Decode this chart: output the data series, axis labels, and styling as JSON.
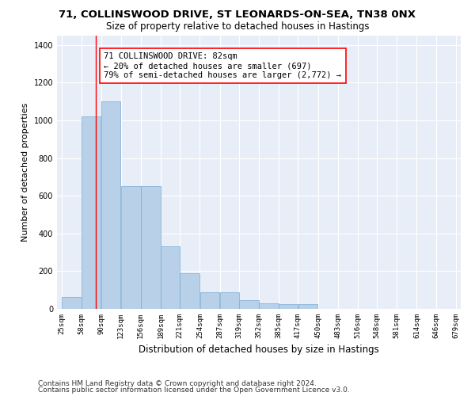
{
  "title_line1": "71, COLLINSWOOD DRIVE, ST LEONARDS-ON-SEA, TN38 0NX",
  "title_line2": "Size of property relative to detached houses in Hastings",
  "xlabel": "Distribution of detached houses by size in Hastings",
  "ylabel": "Number of detached properties",
  "bar_color": "#b8d0e8",
  "bar_edge_color": "#7aadd4",
  "background_color": "#e8eef8",
  "grid_color": "#ffffff",
  "annotation_text": "71 COLLINSWOOD DRIVE: 82sqm\n← 20% of detached houses are smaller (697)\n79% of semi-detached houses are larger (2,772) →",
  "vline_x": 82,
  "bin_edges": [
    25,
    58,
    90,
    123,
    156,
    189,
    221,
    254,
    287,
    319,
    352,
    385,
    417,
    450,
    483,
    516,
    548,
    581,
    614,
    646,
    679
  ],
  "bar_heights": [
    65,
    1020,
    1100,
    650,
    650,
    330,
    190,
    90,
    90,
    45,
    30,
    25,
    25,
    0,
    0,
    0,
    0,
    0,
    0,
    0
  ],
  "ylim": [
    0,
    1450
  ],
  "yticks": [
    0,
    200,
    400,
    600,
    800,
    1000,
    1200,
    1400
  ],
  "footer_line1": "Contains HM Land Registry data © Crown copyright and database right 2024.",
  "footer_line2": "Contains public sector information licensed under the Open Government Licence v3.0.",
  "title_fontsize": 9.5,
  "subtitle_fontsize": 8.5,
  "label_fontsize": 8,
  "tick_fontsize": 6.5,
  "footer_fontsize": 6.5,
  "annot_fontsize": 7.5
}
